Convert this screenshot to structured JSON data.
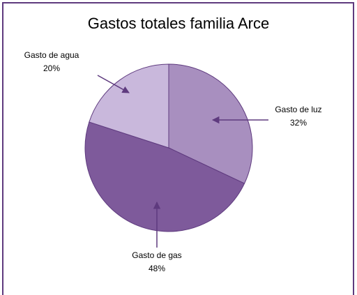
{
  "chart_data": {
    "type": "pie",
    "title": "Gastos totales familia Arce",
    "categories": [
      "Gasto de luz",
      "Gasto de gas",
      "Gasto de agua"
    ],
    "values": [
      32,
      48,
      20
    ],
    "value_labels": [
      "32%",
      "48%",
      "20%"
    ],
    "colors": [
      "#a88fbf",
      "#7e5a9b",
      "#c9b8dc"
    ]
  }
}
